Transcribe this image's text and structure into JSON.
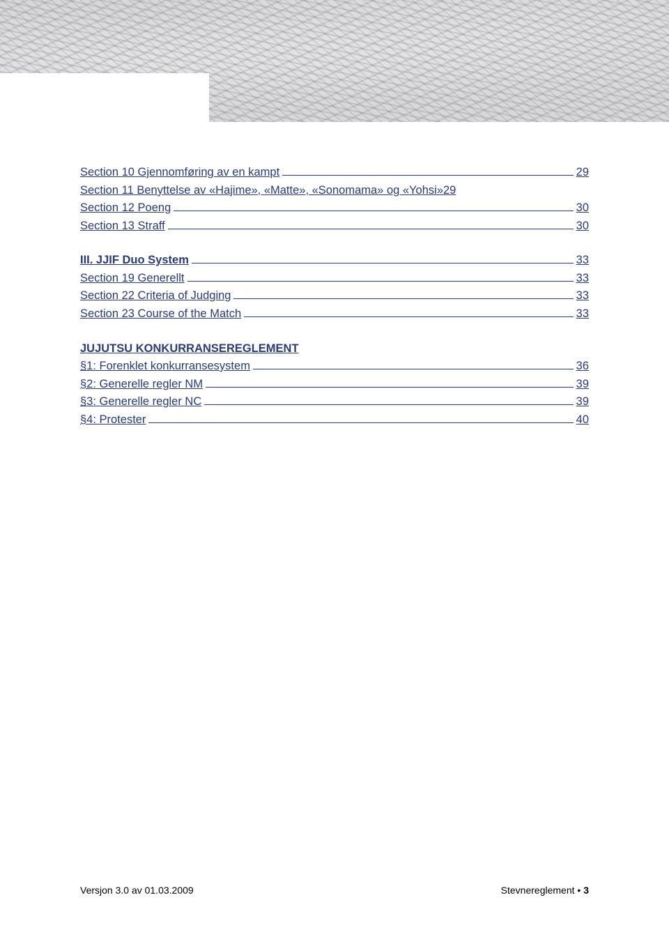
{
  "toc": {
    "group1": [
      {
        "label": "Section 10 Gjennomføring av en kampt",
        "page": "29"
      },
      {
        "label": "Section 11 Benyttelse av «Hajime», «Matte», «Sonomama» og «Yohsi»",
        "page": "29"
      },
      {
        "label": "Section 12 Poeng",
        "page": "30"
      },
      {
        "label": "Section 13 Straff",
        "page": "30"
      }
    ],
    "group2_header": {
      "label": "III. JJIF Duo System",
      "page": "33"
    },
    "group2": [
      {
        "label": "Section 19 Generellt",
        "page": "33"
      },
      {
        "label": "Section 22 Criteria of Judging",
        "page": "33"
      },
      {
        "label": "Section 23 Course of the Match",
        "page": "33"
      }
    ],
    "heading": "JUJUTSU KONKURRANSEREGLEMENT",
    "group3": [
      {
        "label": "§1: Forenklet konkurransesystem",
        "page": "36"
      },
      {
        "label": "§2: Generelle regler NM",
        "page": "39"
      },
      {
        "label": "§3: Generelle regler NC",
        "page": "39"
      },
      {
        "label": "§4: Protester",
        "page": "40"
      }
    ]
  },
  "footer": {
    "left": "Versjon 3.0 av 01.03.2009",
    "right_label": "Stevnereglement  •  ",
    "right_page": "3"
  }
}
